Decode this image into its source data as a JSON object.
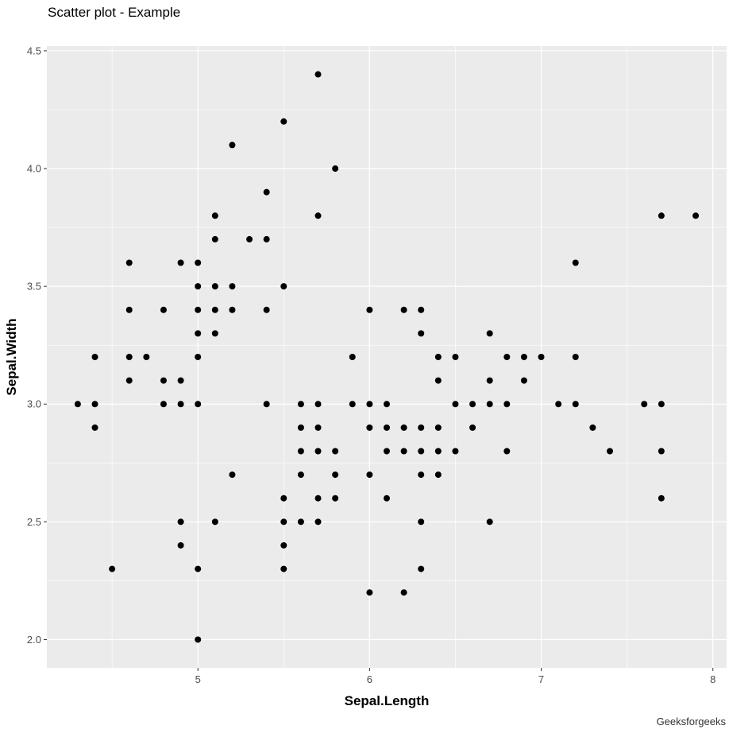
{
  "chart_data": {
    "type": "scatter",
    "title": "Scatter plot - Example",
    "xlabel": "Sepal.Length",
    "ylabel": "Sepal.Width",
    "caption": "Geeksforgeeks",
    "xlim": [
      4.12,
      8.08
    ],
    "ylim": [
      1.88,
      4.52
    ],
    "x_ticks": [
      5,
      6,
      7,
      8
    ],
    "x_tick_labels": [
      "5",
      "6",
      "7",
      "8"
    ],
    "y_ticks": [
      2.0,
      2.5,
      3.0,
      3.5,
      4.0,
      4.5
    ],
    "y_tick_labels": [
      "2.0",
      "2.5",
      "3.0",
      "3.5",
      "4.0",
      "4.5"
    ],
    "grid": true,
    "legend": null,
    "colors": {
      "panel": "#ebebeb",
      "grid": "#ffffff",
      "point": "#000000"
    },
    "points": [
      [
        5.7,
        4.4
      ],
      [
        5.5,
        4.2
      ],
      [
        5.2,
        4.1
      ],
      [
        5.8,
        4.0
      ],
      [
        5.4,
        3.9
      ],
      [
        5.1,
        3.8
      ],
      [
        5.7,
        3.8
      ],
      [
        7.7,
        3.8
      ],
      [
        7.9,
        3.8
      ],
      [
        5.1,
        3.7
      ],
      [
        5.3,
        3.7
      ],
      [
        5.4,
        3.7
      ],
      [
        4.6,
        3.6
      ],
      [
        4.9,
        3.6
      ],
      [
        5.0,
        3.6
      ],
      [
        7.2,
        3.6
      ],
      [
        5.0,
        3.5
      ],
      [
        5.1,
        3.5
      ],
      [
        5.2,
        3.5
      ],
      [
        5.5,
        3.5
      ],
      [
        4.6,
        3.4
      ],
      [
        4.8,
        3.4
      ],
      [
        5.0,
        3.4
      ],
      [
        5.1,
        3.4
      ],
      [
        5.2,
        3.4
      ],
      [
        5.4,
        3.4
      ],
      [
        6.0,
        3.4
      ],
      [
        6.2,
        3.4
      ],
      [
        6.3,
        3.4
      ],
      [
        5.0,
        3.3
      ],
      [
        5.1,
        3.3
      ],
      [
        6.3,
        3.3
      ],
      [
        6.7,
        3.3
      ],
      [
        4.4,
        3.2
      ],
      [
        4.6,
        3.2
      ],
      [
        4.7,
        3.2
      ],
      [
        5.0,
        3.2
      ],
      [
        5.9,
        3.2
      ],
      [
        6.4,
        3.2
      ],
      [
        6.5,
        3.2
      ],
      [
        6.8,
        3.2
      ],
      [
        6.9,
        3.2
      ],
      [
        7.0,
        3.2
      ],
      [
        7.2,
        3.2
      ],
      [
        4.6,
        3.1
      ],
      [
        4.8,
        3.1
      ],
      [
        4.9,
        3.1
      ],
      [
        6.4,
        3.1
      ],
      [
        6.7,
        3.1
      ],
      [
        6.9,
        3.1
      ],
      [
        4.3,
        3.0
      ],
      [
        4.4,
        3.0
      ],
      [
        4.8,
        3.0
      ],
      [
        4.9,
        3.0
      ],
      [
        5.0,
        3.0
      ],
      [
        5.4,
        3.0
      ],
      [
        5.6,
        3.0
      ],
      [
        5.7,
        3.0
      ],
      [
        5.9,
        3.0
      ],
      [
        6.0,
        3.0
      ],
      [
        6.1,
        3.0
      ],
      [
        6.5,
        3.0
      ],
      [
        6.6,
        3.0
      ],
      [
        6.7,
        3.0
      ],
      [
        6.8,
        3.0
      ],
      [
        7.1,
        3.0
      ],
      [
        7.2,
        3.0
      ],
      [
        7.6,
        3.0
      ],
      [
        7.7,
        3.0
      ],
      [
        4.4,
        2.9
      ],
      [
        5.6,
        2.9
      ],
      [
        5.7,
        2.9
      ],
      [
        6.0,
        2.9
      ],
      [
        6.1,
        2.9
      ],
      [
        6.2,
        2.9
      ],
      [
        6.3,
        2.9
      ],
      [
        6.4,
        2.9
      ],
      [
        6.6,
        2.9
      ],
      [
        7.3,
        2.9
      ],
      [
        5.6,
        2.8
      ],
      [
        5.7,
        2.8
      ],
      [
        5.8,
        2.8
      ],
      [
        6.1,
        2.8
      ],
      [
        6.2,
        2.8
      ],
      [
        6.3,
        2.8
      ],
      [
        6.4,
        2.8
      ],
      [
        6.5,
        2.8
      ],
      [
        6.8,
        2.8
      ],
      [
        7.4,
        2.8
      ],
      [
        7.7,
        2.8
      ],
      [
        5.2,
        2.7
      ],
      [
        5.6,
        2.7
      ],
      [
        5.8,
        2.7
      ],
      [
        6.0,
        2.7
      ],
      [
        6.3,
        2.7
      ],
      [
        6.4,
        2.7
      ],
      [
        5.5,
        2.6
      ],
      [
        5.7,
        2.6
      ],
      [
        5.8,
        2.6
      ],
      [
        6.1,
        2.6
      ],
      [
        7.7,
        2.6
      ],
      [
        4.9,
        2.5
      ],
      [
        5.1,
        2.5
      ],
      [
        5.5,
        2.5
      ],
      [
        5.6,
        2.5
      ],
      [
        5.7,
        2.5
      ],
      [
        6.3,
        2.5
      ],
      [
        6.7,
        2.5
      ],
      [
        4.9,
        2.4
      ],
      [
        5.5,
        2.4
      ],
      [
        4.5,
        2.3
      ],
      [
        5.0,
        2.3
      ],
      [
        5.5,
        2.3
      ],
      [
        6.3,
        2.3
      ],
      [
        6.0,
        2.2
      ],
      [
        6.2,
        2.2
      ],
      [
        5.0,
        2.0
      ]
    ]
  }
}
